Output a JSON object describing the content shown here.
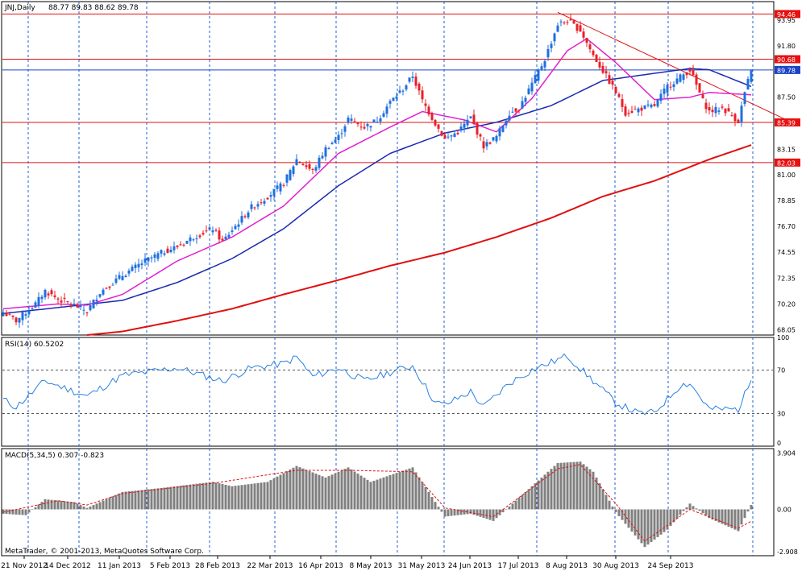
{
  "header": {
    "symbol_label": "JNJ,Daily",
    "ohlc_label": "88.77 89.83 88.62 89.78"
  },
  "footer": {
    "copyright": "MetaTrader, © 2001-2013, MetaQuotes Software Corp."
  },
  "colors": {
    "background": "#ffffff",
    "grid": "#1f5fd0",
    "axis_frame": "#000000",
    "bull_candle": "#1f6fe0",
    "bear_candle": "#e8202a",
    "ma_fast": "#e020d0",
    "ma_mid": "#1a2ab0",
    "ma_slow": "#e01010",
    "hline": "#e01010",
    "trendline": "#e01010",
    "rsi_line": "#2a80e0",
    "macd_hist": "#808080",
    "macd_signal": "#e01010",
    "tag_red": "#e81010",
    "tag_blue": "#1a44c8"
  },
  "chart_data": [
    {
      "type": "candlestick",
      "panel": "price",
      "title": "JNJ,Daily",
      "ohlc_last": {
        "open": 88.77,
        "high": 89.83,
        "low": 88.62,
        "close": 89.78
      },
      "ylim": [
        67.6,
        95.5
      ],
      "y_tick_labels": [
        "93.95",
        "91.80",
        "89.65",
        "87.50",
        "85.35",
        "83.15",
        "81.00",
        "78.85",
        "76.70",
        "74.55",
        "72.35",
        "70.20",
        "68.05"
      ],
      "x_tick_labels": [
        "21 Nov 2012",
        "14 Dec 2012",
        "11 Jan 2013",
        "5 Feb 2013",
        "28 Feb 2013",
        "22 Mar 2013",
        "16 Apr 2013",
        "8 May 2013",
        "31 May 2013",
        "24 Jun 2013",
        "17 Jul 2013",
        "8 Aug 2013",
        "30 Aug 2013",
        "24 Sep 2013"
      ],
      "horizontal_lines": [
        {
          "value": 94.46,
          "label": "94.46",
          "tag": "red"
        },
        {
          "value": 90.68,
          "label": "90.68",
          "tag": "red"
        },
        {
          "value": 89.78,
          "label": "89.78",
          "tag": "blue"
        },
        {
          "value": 85.39,
          "label": "85.39",
          "tag": "red"
        },
        {
          "value": 82.03,
          "label": "82.03",
          "tag": "red"
        }
      ],
      "trendline": {
        "from": {
          "date": "2013-07-19",
          "value": 94.6
        },
        "to": {
          "date": "2013-10-28",
          "value": 85.6
        }
      },
      "close_anchors": [
        {
          "date": "2012-11-21",
          "value": 69.5
        },
        {
          "date": "2012-11-27",
          "value": 68.8
        },
        {
          "date": "2012-12-05",
          "value": 70.2
        },
        {
          "date": "2012-12-10",
          "value": 71.3
        },
        {
          "date": "2012-12-14",
          "value": 70.6
        },
        {
          "date": "2012-12-21",
          "value": 70.1
        },
        {
          "date": "2012-12-27",
          "value": 69.6
        },
        {
          "date": "2013-01-02",
          "value": 71.2
        },
        {
          "date": "2013-01-11",
          "value": 72.6
        },
        {
          "date": "2013-01-22",
          "value": 73.8
        },
        {
          "date": "2013-01-30",
          "value": 74.6
        },
        {
          "date": "2013-02-05",
          "value": 75.0
        },
        {
          "date": "2013-02-12",
          "value": 75.8
        },
        {
          "date": "2013-02-20",
          "value": 76.5
        },
        {
          "date": "2013-02-25",
          "value": 75.4
        },
        {
          "date": "2013-02-28",
          "value": 76.4
        },
        {
          "date": "2013-03-08",
          "value": 78.3
        },
        {
          "date": "2013-03-15",
          "value": 79.2
        },
        {
          "date": "2013-03-22",
          "value": 80.3
        },
        {
          "date": "2013-03-28",
          "value": 82.3
        },
        {
          "date": "2013-04-04",
          "value": 81.3
        },
        {
          "date": "2013-04-10",
          "value": 83.2
        },
        {
          "date": "2013-04-16",
          "value": 84.2
        },
        {
          "date": "2013-04-19",
          "value": 85.7
        },
        {
          "date": "2013-04-26",
          "value": 85.0
        },
        {
          "date": "2013-05-02",
          "value": 85.6
        },
        {
          "date": "2013-05-08",
          "value": 87.1
        },
        {
          "date": "2013-05-14",
          "value": 88.2
        },
        {
          "date": "2013-05-17",
          "value": 89.3
        },
        {
          "date": "2013-05-22",
          "value": 87.2
        },
        {
          "date": "2013-05-28",
          "value": 85.3
        },
        {
          "date": "2013-05-31",
          "value": 84.0
        },
        {
          "date": "2013-06-06",
          "value": 84.6
        },
        {
          "date": "2013-06-12",
          "value": 85.8
        },
        {
          "date": "2013-06-18",
          "value": 83.4
        },
        {
          "date": "2013-06-24",
          "value": 84.2
        },
        {
          "date": "2013-06-28",
          "value": 86.2
        },
        {
          "date": "2013-07-03",
          "value": 86.6
        },
        {
          "date": "2013-07-09",
          "value": 88.6
        },
        {
          "date": "2013-07-15",
          "value": 90.7
        },
        {
          "date": "2013-07-19",
          "value": 93.6
        },
        {
          "date": "2013-07-24",
          "value": 93.9
        },
        {
          "date": "2013-07-30",
          "value": 93.1
        },
        {
          "date": "2013-08-05",
          "value": 91.0
        },
        {
          "date": "2013-08-08",
          "value": 89.7
        },
        {
          "date": "2013-08-14",
          "value": 87.9
        },
        {
          "date": "2013-08-19",
          "value": 86.2
        },
        {
          "date": "2013-08-23",
          "value": 86.5
        },
        {
          "date": "2013-08-30",
          "value": 86.8
        },
        {
          "date": "2013-09-05",
          "value": 88.4
        },
        {
          "date": "2013-09-11",
          "value": 89.2
        },
        {
          "date": "2013-09-16",
          "value": 89.8
        },
        {
          "date": "2013-09-20",
          "value": 87.2
        },
        {
          "date": "2013-09-24",
          "value": 86.3
        },
        {
          "date": "2013-09-30",
          "value": 86.6
        },
        {
          "date": "2013-10-07",
          "value": 85.5
        },
        {
          "date": "2013-10-09",
          "value": 87.9
        },
        {
          "date": "2013-10-11",
          "value": 89.78
        }
      ],
      "ma_fast_anchors": [
        {
          "date": "2012-11-21",
          "value": 69.8
        },
        {
          "date": "2012-12-14",
          "value": 70.2
        },
        {
          "date": "2012-12-27",
          "value": 70.1
        },
        {
          "date": "2013-01-11",
          "value": 71.0
        },
        {
          "date": "2013-02-05",
          "value": 73.8
        },
        {
          "date": "2013-02-28",
          "value": 75.8
        },
        {
          "date": "2013-03-22",
          "value": 78.4
        },
        {
          "date": "2013-04-16",
          "value": 82.8
        },
        {
          "date": "2013-05-08",
          "value": 85.0
        },
        {
          "date": "2013-05-22",
          "value": 86.3
        },
        {
          "date": "2013-06-10",
          "value": 85.6
        },
        {
          "date": "2013-06-24",
          "value": 84.6
        },
        {
          "date": "2013-07-09",
          "value": 87.4
        },
        {
          "date": "2013-07-24",
          "value": 91.4
        },
        {
          "date": "2013-08-01",
          "value": 92.4
        },
        {
          "date": "2013-08-14",
          "value": 90.4
        },
        {
          "date": "2013-08-30",
          "value": 87.3
        },
        {
          "date": "2013-09-16",
          "value": 87.5
        },
        {
          "date": "2013-09-24",
          "value": 87.9
        },
        {
          "date": "2013-10-11",
          "value": 87.7
        }
      ],
      "ma_mid_anchors": [
        {
          "date": "2012-11-21",
          "value": 69.4
        },
        {
          "date": "2012-12-14",
          "value": 69.9
        },
        {
          "date": "2013-01-11",
          "value": 70.5
        },
        {
          "date": "2013-02-05",
          "value": 72.0
        },
        {
          "date": "2013-02-28",
          "value": 74.0
        },
        {
          "date": "2013-03-22",
          "value": 76.5
        },
        {
          "date": "2013-04-16",
          "value": 80.1
        },
        {
          "date": "2013-05-08",
          "value": 82.8
        },
        {
          "date": "2013-05-31",
          "value": 84.5
        },
        {
          "date": "2013-06-24",
          "value": 85.4
        },
        {
          "date": "2013-07-17",
          "value": 86.8
        },
        {
          "date": "2013-08-08",
          "value": 88.9
        },
        {
          "date": "2013-08-30",
          "value": 89.5
        },
        {
          "date": "2013-09-16",
          "value": 89.9
        },
        {
          "date": "2013-09-24",
          "value": 89.8
        },
        {
          "date": "2013-10-11",
          "value": 88.4
        }
      ],
      "ma_slow_anchors": [
        {
          "date": "2012-12-27",
          "value": 67.6
        },
        {
          "date": "2013-01-11",
          "value": 67.9
        },
        {
          "date": "2013-02-05",
          "value": 68.8
        },
        {
          "date": "2013-02-28",
          "value": 69.8
        },
        {
          "date": "2013-03-22",
          "value": 71.0
        },
        {
          "date": "2013-04-16",
          "value": 72.2
        },
        {
          "date": "2013-05-08",
          "value": 73.4
        },
        {
          "date": "2013-05-31",
          "value": 74.5
        },
        {
          "date": "2013-06-24",
          "value": 75.8
        },
        {
          "date": "2013-07-17",
          "value": 77.4
        },
        {
          "date": "2013-08-08",
          "value": 79.2
        },
        {
          "date": "2013-08-30",
          "value": 80.5
        },
        {
          "date": "2013-09-24",
          "value": 82.3
        },
        {
          "date": "2013-10-11",
          "value": 83.5
        }
      ]
    },
    {
      "type": "line",
      "panel": "rsi",
      "title": "RSI(14) 60.5202",
      "ylim": [
        0,
        100
      ],
      "y_tick_labels": [
        "100",
        "70",
        "30",
        "0"
      ],
      "levels": [
        70,
        30
      ],
      "anchors": [
        {
          "date": "2012-11-21",
          "value": 43
        },
        {
          "date": "2012-11-27",
          "value": 36
        },
        {
          "date": "2012-12-10",
          "value": 60
        },
        {
          "date": "2012-12-27",
          "value": 46
        },
        {
          "date": "2013-01-11",
          "value": 65
        },
        {
          "date": "2013-02-05",
          "value": 72
        },
        {
          "date": "2013-02-25",
          "value": 60
        },
        {
          "date": "2013-03-08",
          "value": 72
        },
        {
          "date": "2013-03-22",
          "value": 76
        },
        {
          "date": "2013-03-28",
          "value": 82
        },
        {
          "date": "2013-04-04",
          "value": 64
        },
        {
          "date": "2013-04-16",
          "value": 72
        },
        {
          "date": "2013-04-26",
          "value": 60
        },
        {
          "date": "2013-05-08",
          "value": 68
        },
        {
          "date": "2013-05-17",
          "value": 74
        },
        {
          "date": "2013-05-28",
          "value": 40
        },
        {
          "date": "2013-05-31",
          "value": 38
        },
        {
          "date": "2013-06-12",
          "value": 50
        },
        {
          "date": "2013-06-18",
          "value": 36
        },
        {
          "date": "2013-06-28",
          "value": 58
        },
        {
          "date": "2013-07-09",
          "value": 70
        },
        {
          "date": "2013-07-24",
          "value": 83
        },
        {
          "date": "2013-08-05",
          "value": 60
        },
        {
          "date": "2013-08-14",
          "value": 40
        },
        {
          "date": "2013-08-23",
          "value": 30
        },
        {
          "date": "2013-08-30",
          "value": 31
        },
        {
          "date": "2013-09-11",
          "value": 56
        },
        {
          "date": "2013-09-16",
          "value": 58
        },
        {
          "date": "2013-09-24",
          "value": 34
        },
        {
          "date": "2013-10-07",
          "value": 34
        },
        {
          "date": "2013-10-11",
          "value": 60.52
        }
      ]
    },
    {
      "type": "bar",
      "panel": "macd",
      "title": "MACD(5,34,5) 0.307 -0.823",
      "ylim": [
        -3.2,
        4.2
      ],
      "y_tick_labels": [
        "3.904",
        "0.00",
        "-2.908"
      ],
      "histogram_anchors": [
        {
          "date": "2012-11-21",
          "value": -0.3
        },
        {
          "date": "2012-11-30",
          "value": -0.4
        },
        {
          "date": "2012-12-10",
          "value": 0.7
        },
        {
          "date": "2012-12-21",
          "value": 0.5
        },
        {
          "date": "2012-12-27",
          "value": 0.1
        },
        {
          "date": "2013-01-11",
          "value": 1.2
        },
        {
          "date": "2013-01-30",
          "value": 1.5
        },
        {
          "date": "2013-02-20",
          "value": 1.9
        },
        {
          "date": "2013-02-28",
          "value": 1.6
        },
        {
          "date": "2013-03-15",
          "value": 1.9
        },
        {
          "date": "2013-03-28",
          "value": 3.0
        },
        {
          "date": "2013-04-10",
          "value": 2.2
        },
        {
          "date": "2013-04-19",
          "value": 2.9
        },
        {
          "date": "2013-04-30",
          "value": 1.9
        },
        {
          "date": "2013-05-17",
          "value": 2.9
        },
        {
          "date": "2013-05-31",
          "value": -0.5
        },
        {
          "date": "2013-06-12",
          "value": -0.3
        },
        {
          "date": "2013-06-21",
          "value": -0.8
        },
        {
          "date": "2013-07-03",
          "value": 0.8
        },
        {
          "date": "2013-07-19",
          "value": 3.2
        },
        {
          "date": "2013-07-30",
          "value": 3.3
        },
        {
          "date": "2013-08-05",
          "value": 2.6
        },
        {
          "date": "2013-08-14",
          "value": -0.2
        },
        {
          "date": "2013-08-27",
          "value": -2.6
        },
        {
          "date": "2013-09-05",
          "value": -1.4
        },
        {
          "date": "2013-09-16",
          "value": 0.4
        },
        {
          "date": "2013-09-24",
          "value": -0.6
        },
        {
          "date": "2013-10-07",
          "value": -1.5
        },
        {
          "date": "2013-10-11",
          "value": 0.307
        }
      ],
      "signal_anchors": [
        {
          "date": "2012-11-21",
          "value": -0.2
        },
        {
          "date": "2012-12-14",
          "value": 0.6
        },
        {
          "date": "2012-12-27",
          "value": 0.3
        },
        {
          "date": "2013-01-11",
          "value": 1.1
        },
        {
          "date": "2013-02-20",
          "value": 1.8
        },
        {
          "date": "2013-03-28",
          "value": 2.7
        },
        {
          "date": "2013-04-19",
          "value": 2.7
        },
        {
          "date": "2013-05-17",
          "value": 2.6
        },
        {
          "date": "2013-05-31",
          "value": 0.1
        },
        {
          "date": "2013-06-21",
          "value": -0.5
        },
        {
          "date": "2013-07-19",
          "value": 2.8
        },
        {
          "date": "2013-07-30",
          "value": 3.1
        },
        {
          "date": "2013-08-14",
          "value": 0.4
        },
        {
          "date": "2013-08-27",
          "value": -2.2
        },
        {
          "date": "2013-09-16",
          "value": 0.0
        },
        {
          "date": "2013-10-07",
          "value": -1.3
        },
        {
          "date": "2013-10-11",
          "value": -0.823
        }
      ]
    }
  ]
}
